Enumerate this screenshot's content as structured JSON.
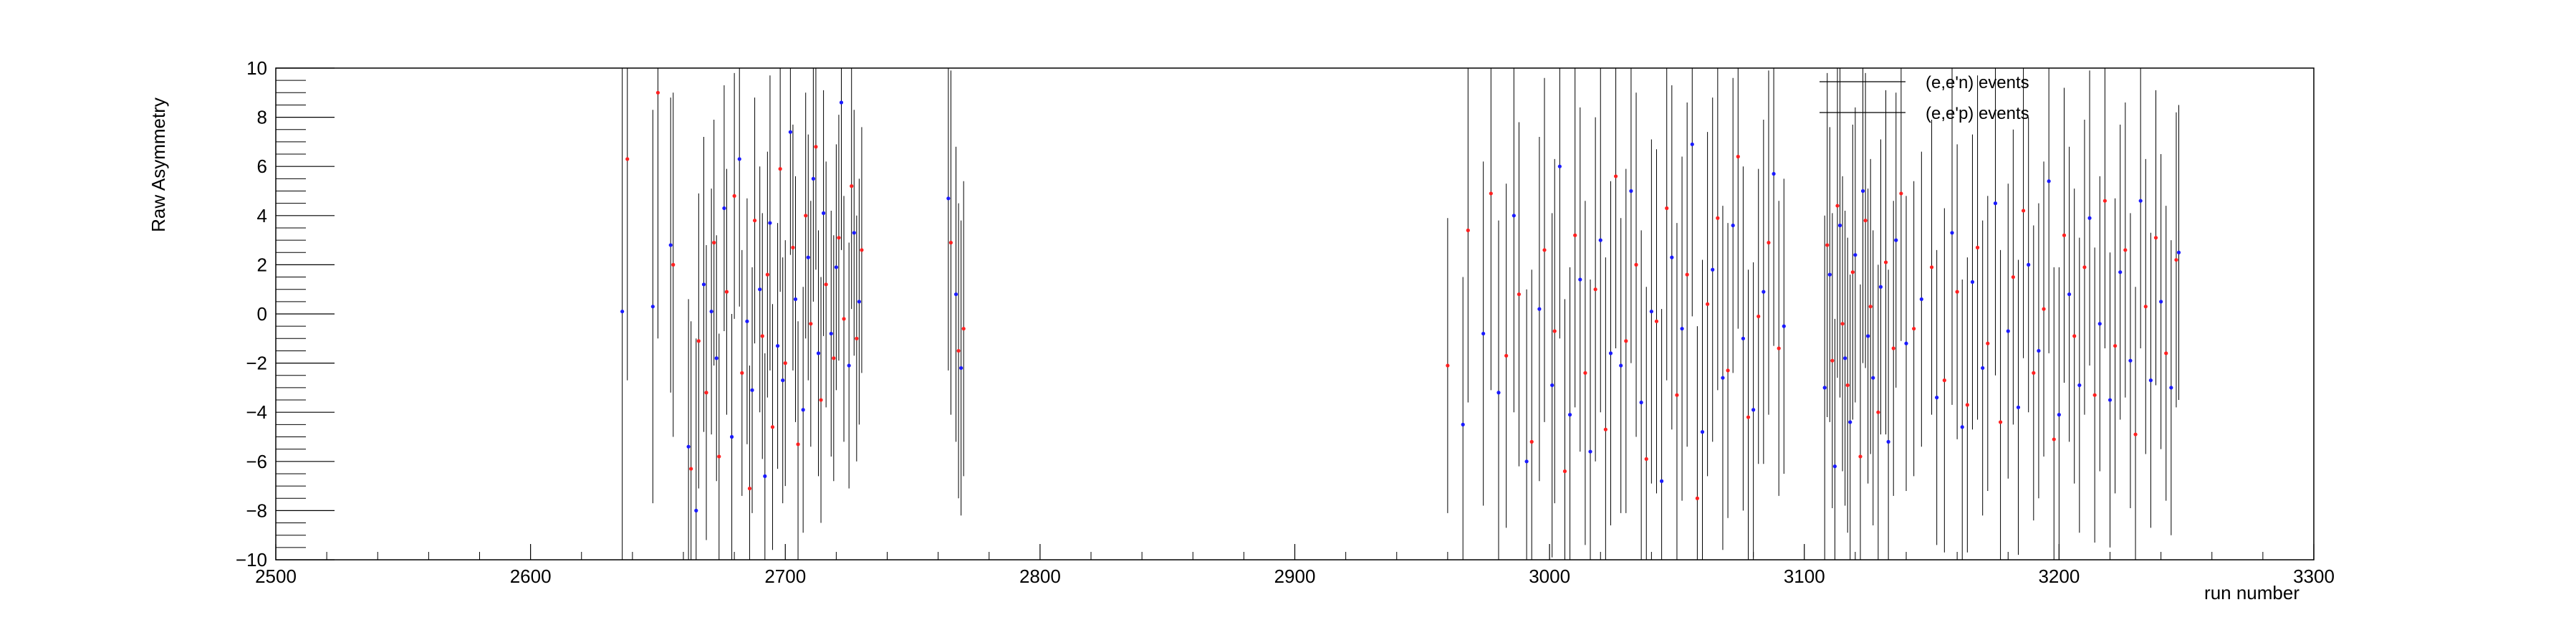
{
  "chart_data": {
    "type": "scatter",
    "xlabel": "run number",
    "ylabel": "Raw Asymmetry",
    "xlim": [
      2500,
      3300
    ],
    "ylim": [
      -10,
      10
    ],
    "x_ticks": [
      "2500",
      "2600",
      "2700",
      "2800",
      "2900",
      "3000",
      "3100",
      "3200",
      "3300"
    ],
    "y_ticks": [
      "−10",
      "−8",
      "−6",
      "−4",
      "−2",
      "0",
      "2",
      "4",
      "6",
      "8",
      "10"
    ],
    "grid": false,
    "legend_position": "top-right",
    "error_bars": true,
    "series": [
      {
        "name": "(e,e'n) events",
        "color": "#1a1aff",
        "points": [
          [
            2636,
            0.1,
            12
          ],
          [
            2648,
            0.3,
            8
          ],
          [
            2655,
            2.8,
            6
          ],
          [
            2662,
            -5.4,
            6
          ],
          [
            2665,
            -8.0,
            7
          ],
          [
            2668,
            1.2,
            6
          ],
          [
            2671,
            0.1,
            5
          ],
          [
            2673,
            -1.8,
            5
          ],
          [
            2676,
            4.3,
            5
          ],
          [
            2679,
            -5.0,
            5
          ],
          [
            2682,
            6.3,
            6
          ],
          [
            2685,
            -0.3,
            5
          ],
          [
            2687,
            -3.1,
            5
          ],
          [
            2690,
            1.0,
            5
          ],
          [
            2692,
            -6.6,
            5
          ],
          [
            2694,
            3.7,
            6
          ],
          [
            2697,
            -1.3,
            5
          ],
          [
            2699,
            -2.7,
            5
          ],
          [
            2702,
            7.4,
            5
          ],
          [
            2704,
            0.6,
            5
          ],
          [
            2707,
            -3.9,
            5
          ],
          [
            2709,
            2.3,
            5
          ],
          [
            2711,
            5.5,
            5
          ],
          [
            2713,
            -1.6,
            5
          ],
          [
            2715,
            4.1,
            5
          ],
          [
            2718,
            -0.8,
            5
          ],
          [
            2720,
            1.9,
            5
          ],
          [
            2722,
            8.6,
            6
          ],
          [
            2725,
            -2.1,
            5
          ],
          [
            2727,
            3.3,
            5
          ],
          [
            2729,
            0.5,
            5
          ],
          [
            2764,
            4.7,
            7
          ],
          [
            2767,
            0.8,
            6
          ],
          [
            2769,
            -2.2,
            6
          ],
          [
            2966,
            -4.5,
            6
          ],
          [
            2974,
            -0.8,
            7
          ],
          [
            2980,
            -3.2,
            7
          ],
          [
            2986,
            4.0,
            8
          ],
          [
            2991,
            -6.0,
            7
          ],
          [
            2996,
            0.2,
            7
          ],
          [
            3001,
            -2.9,
            7
          ],
          [
            3004,
            6.0,
            7
          ],
          [
            3008,
            -4.1,
            6
          ],
          [
            3012,
            1.4,
            7
          ],
          [
            3016,
            -5.6,
            7
          ],
          [
            3020,
            3.0,
            7
          ],
          [
            3024,
            -1.6,
            7
          ],
          [
            3028,
            -2.1,
            6
          ],
          [
            3032,
            5.0,
            7
          ],
          [
            3036,
            -3.6,
            7
          ],
          [
            3040,
            0.1,
            7
          ],
          [
            3044,
            -6.8,
            7
          ],
          [
            3048,
            2.3,
            7
          ],
          [
            3052,
            -0.6,
            7
          ],
          [
            3056,
            6.9,
            7
          ],
          [
            3060,
            -4.8,
            7
          ],
          [
            3064,
            1.8,
            7
          ],
          [
            3068,
            -2.6,
            7
          ],
          [
            3072,
            3.6,
            6
          ],
          [
            3076,
            -1.0,
            7
          ],
          [
            3080,
            -3.9,
            6
          ],
          [
            3084,
            0.9,
            7
          ],
          [
            3088,
            5.7,
            7
          ],
          [
            3092,
            -0.5,
            6
          ],
          [
            3108,
            -3.0,
            7
          ],
          [
            3110,
            1.6,
            6
          ],
          [
            3112,
            -6.2,
            6
          ],
          [
            3114,
            3.6,
            7
          ],
          [
            3116,
            -1.8,
            6
          ],
          [
            3118,
            -4.4,
            6
          ],
          [
            3120,
            2.4,
            6
          ],
          [
            3123,
            5.0,
            7
          ],
          [
            3125,
            -0.9,
            6
          ],
          [
            3127,
            -2.6,
            6
          ],
          [
            3130,
            1.1,
            6
          ],
          [
            3133,
            -5.2,
            7
          ],
          [
            3136,
            3.0,
            6
          ],
          [
            3140,
            -1.2,
            6
          ],
          [
            3146,
            0.6,
            6
          ],
          [
            3152,
            -3.4,
            6
          ],
          [
            3158,
            3.3,
            7
          ],
          [
            3162,
            -4.6,
            6
          ],
          [
            3166,
            1.3,
            6
          ],
          [
            3170,
            -2.2,
            6
          ],
          [
            3175,
            4.5,
            7
          ],
          [
            3180,
            -0.7,
            6
          ],
          [
            3184,
            -3.8,
            6
          ],
          [
            3188,
            2.0,
            6
          ],
          [
            3192,
            -1.5,
            6
          ],
          [
            3196,
            5.4,
            7
          ],
          [
            3200,
            -4.1,
            6
          ],
          [
            3204,
            0.8,
            6
          ],
          [
            3208,
            -2.9,
            6
          ],
          [
            3212,
            3.9,
            6
          ],
          [
            3216,
            -0.4,
            6
          ],
          [
            3220,
            -3.5,
            6
          ],
          [
            3224,
            1.7,
            6
          ],
          [
            3228,
            -1.9,
            6
          ],
          [
            3232,
            4.6,
            6
          ],
          [
            3236,
            -2.7,
            6
          ],
          [
            3240,
            0.5,
            6
          ],
          [
            3244,
            -3.0,
            6
          ],
          [
            3247,
            2.5,
            6
          ]
        ]
      },
      {
        "name": "(e,e'p) events",
        "color": "#ff2020",
        "points": [
          [
            2638,
            6.3,
            9
          ],
          [
            2650,
            9.0,
            10
          ],
          [
            2656,
            2.0,
            7
          ],
          [
            2663,
            -6.3,
            6
          ],
          [
            2666,
            -1.1,
            6
          ],
          [
            2669,
            -3.2,
            6
          ],
          [
            2672,
            2.9,
            5
          ],
          [
            2674,
            -5.8,
            5
          ],
          [
            2677,
            0.9,
            5
          ],
          [
            2680,
            4.8,
            5
          ],
          [
            2683,
            -2.4,
            5
          ],
          [
            2686,
            -7.1,
            5
          ],
          [
            2688,
            3.8,
            5
          ],
          [
            2691,
            -0.9,
            5
          ],
          [
            2693,
            1.6,
            5
          ],
          [
            2695,
            -4.6,
            5
          ],
          [
            2698,
            5.9,
            5
          ],
          [
            2700,
            -2.0,
            5
          ],
          [
            2703,
            2.7,
            5
          ],
          [
            2705,
            -5.3,
            5
          ],
          [
            2708,
            4.0,
            5
          ],
          [
            2710,
            -0.4,
            5
          ],
          [
            2712,
            6.8,
            5
          ],
          [
            2714,
            -3.5,
            5
          ],
          [
            2716,
            1.2,
            5
          ],
          [
            2719,
            -1.8,
            5
          ],
          [
            2721,
            3.1,
            5
          ],
          [
            2723,
            -0.2,
            5
          ],
          [
            2726,
            5.2,
            5
          ],
          [
            2728,
            -1.0,
            5
          ],
          [
            2730,
            2.6,
            5
          ],
          [
            2765,
            2.9,
            7
          ],
          [
            2768,
            -1.5,
            6
          ],
          [
            2770,
            -0.6,
            6
          ],
          [
            2960,
            -2.1,
            6
          ],
          [
            2968,
            3.4,
            7
          ],
          [
            2977,
            4.9,
            8
          ],
          [
            2983,
            -1.7,
            7
          ],
          [
            2988,
            0.8,
            7
          ],
          [
            2993,
            -5.2,
            7
          ],
          [
            2998,
            2.6,
            7
          ],
          [
            3002,
            -0.7,
            7
          ],
          [
            3006,
            -6.4,
            7
          ],
          [
            3010,
            3.2,
            7
          ],
          [
            3014,
            -2.4,
            7
          ],
          [
            3018,
            1.0,
            7
          ],
          [
            3022,
            -4.7,
            7
          ],
          [
            3026,
            5.6,
            7
          ],
          [
            3030,
            -1.1,
            7
          ],
          [
            3034,
            2.0,
            7
          ],
          [
            3038,
            -5.9,
            7
          ],
          [
            3042,
            -0.3,
            7
          ],
          [
            3046,
            4.3,
            7
          ],
          [
            3050,
            -3.3,
            7
          ],
          [
            3054,
            1.6,
            7
          ],
          [
            3058,
            -7.5,
            7
          ],
          [
            3062,
            0.4,
            7
          ],
          [
            3066,
            3.9,
            7
          ],
          [
            3070,
            -2.3,
            6
          ],
          [
            3074,
            6.4,
            7
          ],
          [
            3078,
            -4.2,
            6
          ],
          [
            3082,
            -0.1,
            6
          ],
          [
            3086,
            2.9,
            7
          ],
          [
            3090,
            -1.4,
            6
          ],
          [
            3109,
            2.8,
            7
          ],
          [
            3111,
            -1.9,
            6
          ],
          [
            3113,
            4.4,
            7
          ],
          [
            3115,
            -0.4,
            6
          ],
          [
            3117,
            -2.9,
            6
          ],
          [
            3119,
            1.7,
            6
          ],
          [
            3122,
            -5.8,
            7
          ],
          [
            3124,
            3.8,
            6
          ],
          [
            3126,
            0.3,
            6
          ],
          [
            3129,
            -4.0,
            6
          ],
          [
            3132,
            2.1,
            7
          ],
          [
            3135,
            -1.4,
            6
          ],
          [
            3138,
            4.9,
            6
          ],
          [
            3143,
            -0.6,
            6
          ],
          [
            3150,
            1.9,
            6
          ],
          [
            3155,
            -2.7,
            7
          ],
          [
            3160,
            0.9,
            6
          ],
          [
            3164,
            -3.7,
            6
          ],
          [
            3168,
            2.7,
            7
          ],
          [
            3172,
            -1.2,
            6
          ],
          [
            3177,
            -4.4,
            7
          ],
          [
            3182,
            1.5,
            6
          ],
          [
            3186,
            4.2,
            6
          ],
          [
            3190,
            -2.4,
            6
          ],
          [
            3194,
            0.2,
            6
          ],
          [
            3198,
            -5.1,
            7
          ],
          [
            3202,
            3.2,
            6
          ],
          [
            3206,
            -0.9,
            6
          ],
          [
            3210,
            1.9,
            6
          ],
          [
            3214,
            -3.3,
            6
          ],
          [
            3218,
            4.6,
            6
          ],
          [
            3222,
            -1.3,
            6
          ],
          [
            3226,
            2.6,
            6
          ],
          [
            3230,
            -4.9,
            6
          ],
          [
            3234,
            0.3,
            6
          ],
          [
            3238,
            3.1,
            6
          ],
          [
            3242,
            -1.6,
            6
          ],
          [
            3246,
            2.2,
            6
          ]
        ]
      }
    ]
  }
}
